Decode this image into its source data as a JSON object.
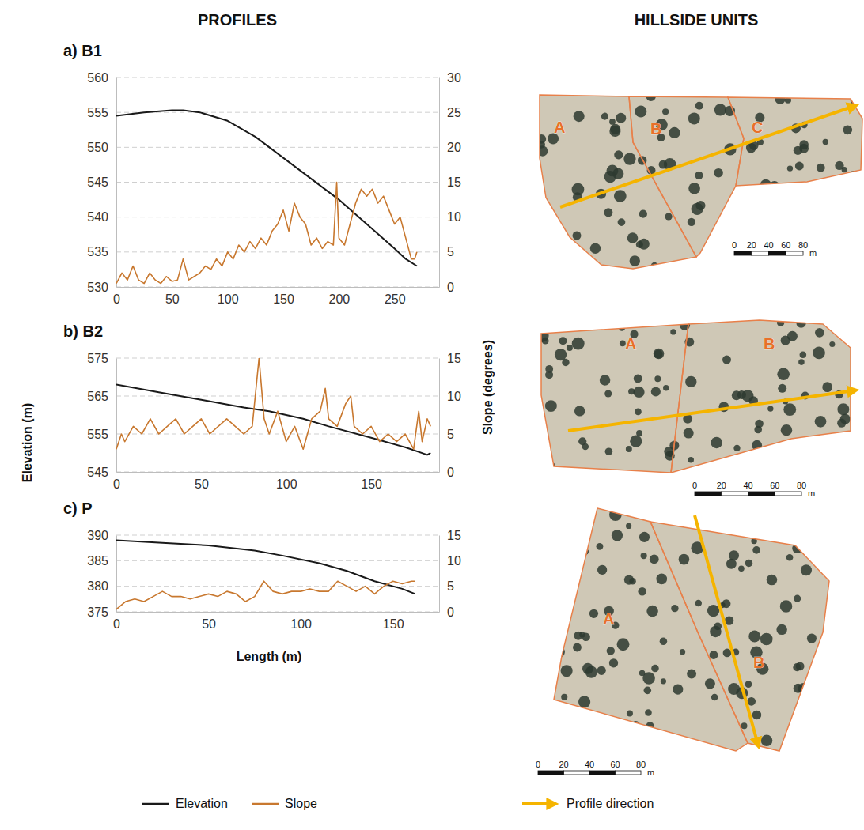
{
  "headings": [
    "PROFILES",
    "HILLSIDE UNITS"
  ],
  "axis_labels": {
    "x": "Length (m)",
    "y": "Elevation (m)",
    "y2": "Slope (degrees)"
  },
  "profile_direction_label": "Profile direction",
  "chart_data": [
    {
      "type": "line",
      "title": "a) B1",
      "grid": true,
      "xlim": [
        0,
        290
      ],
      "xticks": [
        0,
        50,
        100,
        150,
        200,
        250
      ],
      "ylim": [
        530,
        560
      ],
      "yticks": [
        530,
        535,
        540,
        545,
        550,
        555,
        560
      ],
      "y2lim": [
        0,
        30
      ],
      "y2ticks": [
        0,
        5,
        10,
        15,
        20,
        25,
        30
      ],
      "series": [
        {
          "name": "Elevation",
          "color": "#1a1a1a",
          "axis": "y",
          "x": [
            0,
            25,
            50,
            60,
            75,
            100,
            125,
            150,
            175,
            200,
            225,
            250,
            260,
            270
          ],
          "values": [
            554.5,
            555.0,
            555.3,
            555.3,
            555.0,
            553.8,
            551.5,
            548.5,
            545.5,
            542.5,
            539.0,
            535.5,
            534.0,
            533.0
          ]
        },
        {
          "name": "Slope",
          "color": "#c8782f",
          "axis": "y2",
          "x": [
            0,
            5,
            10,
            15,
            20,
            25,
            30,
            35,
            40,
            45,
            50,
            55,
            60,
            65,
            70,
            75,
            80,
            85,
            90,
            95,
            100,
            105,
            110,
            115,
            120,
            125,
            130,
            135,
            140,
            145,
            150,
            155,
            160,
            165,
            170,
            175,
            180,
            185,
            190,
            195,
            198,
            200,
            205,
            210,
            215,
            220,
            225,
            230,
            235,
            240,
            245,
            250,
            255,
            260,
            265,
            268,
            270
          ],
          "values": [
            0.5,
            2,
            1,
            3,
            1,
            0.5,
            2,
            1,
            0.5,
            1.5,
            0.8,
            1,
            4,
            1,
            1.5,
            2,
            3,
            2.5,
            4,
            3,
            5,
            4,
            6,
            5,
            6.5,
            5.5,
            7,
            6,
            8,
            9,
            11,
            8,
            12,
            10,
            9,
            6,
            7,
            5.5,
            6.5,
            6,
            15,
            7,
            6,
            9,
            12,
            14,
            13,
            14,
            12,
            13,
            11,
            9,
            10,
            7,
            4,
            4,
            5
          ]
        }
      ]
    },
    {
      "type": "line",
      "title": "b) B2",
      "grid": true,
      "xlim": [
        0,
        190
      ],
      "xticks": [
        0,
        50,
        100,
        150
      ],
      "ylim": [
        545,
        575
      ],
      "yticks": [
        545,
        555,
        565,
        575
      ],
      "y2lim": [
        0,
        15
      ],
      "y2ticks": [
        0,
        5,
        10,
        15
      ],
      "series": [
        {
          "color": "#1a1a1a",
          "axis": "y",
          "x": [
            0,
            25,
            50,
            75,
            90,
            110,
            125,
            150,
            170,
            183,
            185
          ],
          "values": [
            568,
            566,
            564,
            562,
            561,
            559,
            557,
            554,
            551.5,
            549.5,
            550
          ]
        },
        {
          "color": "#c8782f",
          "axis": "y2",
          "x": [
            0,
            3,
            5,
            10,
            15,
            20,
            25,
            30,
            35,
            40,
            45,
            50,
            55,
            60,
            65,
            70,
            75,
            80,
            84,
            87,
            90,
            95,
            100,
            105,
            110,
            115,
            120,
            123,
            125,
            130,
            135,
            138,
            140,
            145,
            150,
            155,
            160,
            165,
            170,
            175,
            178,
            180,
            183,
            185
          ],
          "values": [
            3,
            5,
            4,
            6,
            5,
            7,
            5,
            6,
            7,
            5,
            6,
            7,
            5,
            6,
            7,
            6,
            5,
            6,
            15,
            7,
            5,
            8,
            4,
            6,
            3,
            7,
            8,
            11,
            7,
            6,
            9,
            10,
            6,
            5,
            6,
            4,
            5,
            4,
            5,
            3,
            8,
            4,
            7,
            6
          ]
        }
      ]
    },
    {
      "type": "line",
      "title": "c) P",
      "grid": true,
      "xlim": [
        0,
        175
      ],
      "xticks": [
        0,
        50,
        100,
        150
      ],
      "ylim": [
        375,
        390
      ],
      "yticks": [
        375,
        380,
        385,
        390
      ],
      "y2lim": [
        0,
        15
      ],
      "y2ticks": [
        0,
        5,
        10,
        15
      ],
      "series": [
        {
          "color": "#1a1a1a",
          "axis": "y",
          "x": [
            0,
            25,
            50,
            75,
            90,
            110,
            125,
            140,
            155,
            162
          ],
          "values": [
            389,
            388.5,
            388,
            387,
            386,
            384.5,
            383,
            381,
            379.5,
            378.5
          ]
        },
        {
          "color": "#c8782f",
          "axis": "y2",
          "x": [
            0,
            5,
            10,
            15,
            20,
            25,
            30,
            35,
            40,
            45,
            50,
            55,
            60,
            65,
            70,
            75,
            80,
            85,
            90,
            95,
            100,
            105,
            110,
            115,
            120,
            125,
            130,
            135,
            140,
            145,
            150,
            155,
            160,
            162
          ],
          "values": [
            0.5,
            2,
            2.5,
            2,
            3,
            4,
            3,
            3,
            2.5,
            3,
            3.5,
            3,
            4,
            3.5,
            2,
            3,
            6,
            4,
            3.5,
            4,
            4,
            4.5,
            4,
            4,
            6,
            5,
            4,
            5,
            3.5,
            5,
            6,
            5.5,
            6,
            6
          ]
        }
      ]
    }
  ],
  "maps": [
    {
      "units": [
        "A",
        "B",
        "C"
      ],
      "scale_bar": {
        "ticks": [
          0,
          20,
          40,
          60,
          80
        ],
        "unit": "m"
      }
    },
    {
      "units": [
        "A",
        "B"
      ],
      "scale_bar": {
        "ticks": [
          0,
          20,
          40,
          60,
          80
        ],
        "unit": "m"
      }
    },
    {
      "units": [
        "A",
        "B"
      ],
      "scale_bar": {
        "ticks": [
          0,
          20,
          40,
          60,
          80
        ],
        "unit": "m"
      }
    }
  ]
}
